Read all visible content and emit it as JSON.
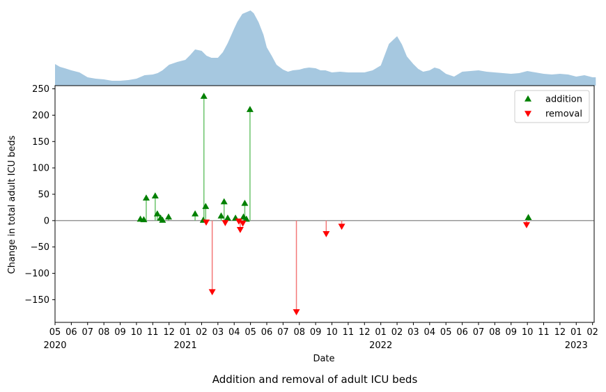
{
  "figure": {
    "title": "Addition and removal of adult ICU beds"
  },
  "chart_data": [
    {
      "type": "area",
      "panel": "top",
      "x_unit": "months since 2020-05-01",
      "x": [
        0,
        0.3,
        0.6,
        1,
        1.5,
        2,
        2.5,
        3,
        3.5,
        4,
        4.5,
        5,
        5.5,
        6,
        6.3,
        6.6,
        7,
        7.5,
        8,
        8.3,
        8.6,
        9,
        9.3,
        9.6,
        10,
        10.3,
        10.6,
        11,
        11.2,
        11.5,
        12,
        12.2,
        12.5,
        12.8,
        13,
        13.3,
        13.6,
        14,
        14.3,
        14.6,
        15,
        15.3,
        15.6,
        16,
        16.3,
        16.6,
        17,
        17.5,
        18,
        18.5,
        19,
        19.5,
        20,
        20.5,
        21,
        21.3,
        21.6,
        22,
        22.3,
        22.6,
        23,
        23.3,
        23.6,
        24,
        24.5,
        25,
        25.5,
        26,
        26.5,
        27,
        27.5,
        28,
        28.5,
        29,
        29.5,
        30,
        30.5,
        31,
        31.5,
        32,
        32.5,
        33,
        33.2
      ],
      "y": [
        31,
        27,
        25,
        22,
        19,
        12,
        10,
        9,
        7,
        7,
        8,
        10,
        15,
        16,
        18,
        22,
        30,
        34,
        37,
        44,
        52,
        50,
        43,
        40,
        40,
        48,
        61,
        82,
        92,
        103,
        108,
        104,
        91,
        73,
        55,
        43,
        30,
        23,
        20,
        22,
        23,
        25,
        26,
        25,
        22,
        22,
        19,
        20,
        19,
        19,
        19,
        22,
        29,
        60,
        71,
        59,
        42,
        31,
        24,
        20,
        22,
        26,
        24,
        17,
        13,
        20,
        21,
        22,
        20,
        19,
        18,
        17,
        18,
        21,
        19,
        17,
        16,
        17,
        16,
        13,
        15,
        12,
        12
      ],
      "ylim": [
        0,
        112
      ],
      "color": "#a6c8e0"
    },
    {
      "type": "scatter",
      "panel": "main",
      "xlabel": "Date",
      "ylabel": "Change in total adult ICU beds",
      "ylim": [
        -193,
        256
      ],
      "xlim": [
        0,
        33.1
      ],
      "y_ticks": [
        250,
        200,
        150,
        100,
        50,
        0,
        -50,
        -100,
        -150
      ],
      "y_tick_labels": [
        "250",
        "200",
        "150",
        "100",
        "50",
        "0",
        "−50",
        "−100",
        "−150"
      ],
      "x_ticks": [
        {
          "m": 0,
          "label": "05",
          "year": "2020"
        },
        {
          "m": 1,
          "label": "06"
        },
        {
          "m": 2,
          "label": "07"
        },
        {
          "m": 3,
          "label": "08"
        },
        {
          "m": 4,
          "label": "09"
        },
        {
          "m": 5,
          "label": "10"
        },
        {
          "m": 6,
          "label": "11"
        },
        {
          "m": 7,
          "label": "12"
        },
        {
          "m": 8,
          "label": "01",
          "year": "2021"
        },
        {
          "m": 9,
          "label": "02"
        },
        {
          "m": 10,
          "label": "03"
        },
        {
          "m": 11,
          "label": "04"
        },
        {
          "m": 12,
          "label": "05"
        },
        {
          "m": 13,
          "label": "06"
        },
        {
          "m": 14,
          "label": "07"
        },
        {
          "m": 15,
          "label": "08"
        },
        {
          "m": 16,
          "label": "09"
        },
        {
          "m": 17,
          "label": "10"
        },
        {
          "m": 18,
          "label": "11"
        },
        {
          "m": 19,
          "label": "12"
        },
        {
          "m": 20,
          "label": "01",
          "year": "2022"
        },
        {
          "m": 21,
          "label": "02"
        },
        {
          "m": 22,
          "label": "03"
        },
        {
          "m": 23,
          "label": "04"
        },
        {
          "m": 24,
          "label": "05"
        },
        {
          "m": 25,
          "label": "06"
        },
        {
          "m": 26,
          "label": "07"
        },
        {
          "m": 27,
          "label": "08"
        },
        {
          "m": 28,
          "label": "09"
        },
        {
          "m": 29,
          "label": "10"
        },
        {
          "m": 30,
          "label": "11"
        },
        {
          "m": 31,
          "label": "12"
        },
        {
          "m": 32,
          "label": "01",
          "year": "2023"
        },
        {
          "m": 33,
          "label": "02"
        }
      ],
      "legend": {
        "placement": "top-right",
        "entries": [
          "addition",
          "removal"
        ]
      },
      "series": [
        {
          "name": "addition",
          "marker": "triangle-up",
          "color": "#008000",
          "stem_color": "#6cc46c",
          "points": [
            {
              "m": 5.24,
              "y": 3
            },
            {
              "m": 5.45,
              "y": 2
            },
            {
              "m": 5.6,
              "y": 43
            },
            {
              "m": 6.15,
              "y": 47
            },
            {
              "m": 6.28,
              "y": 13
            },
            {
              "m": 6.48,
              "y": 5
            },
            {
              "m": 6.6,
              "y": 1
            },
            {
              "m": 6.97,
              "y": 7
            },
            {
              "m": 8.6,
              "y": 13
            },
            {
              "m": 9.1,
              "y": 1
            },
            {
              "m": 9.14,
              "y": 236
            },
            {
              "m": 9.25,
              "y": 27
            },
            {
              "m": 10.2,
              "y": 9
            },
            {
              "m": 10.38,
              "y": 36
            },
            {
              "m": 10.6,
              "y": 5
            },
            {
              "m": 11.08,
              "y": 5
            },
            {
              "m": 11.57,
              "y": 7
            },
            {
              "m": 11.65,
              "y": 33
            },
            {
              "m": 11.75,
              "y": 3
            },
            {
              "m": 11.97,
              "y": 211
            },
            {
              "m": 29.06,
              "y": 6
            }
          ]
        },
        {
          "name": "removal",
          "marker": "triangle-down",
          "color": "#ff0000",
          "stem_color": "#f47878",
          "points": [
            {
              "m": 9.28,
              "y": -3
            },
            {
              "m": 9.65,
              "y": -135
            },
            {
              "m": 10.45,
              "y": -4
            },
            {
              "m": 11.28,
              "y": -1
            },
            {
              "m": 11.37,
              "y": -17
            },
            {
              "m": 11.53,
              "y": -5
            },
            {
              "m": 14.82,
              "y": -173
            },
            {
              "m": 16.65,
              "y": -25
            },
            {
              "m": 17.6,
              "y": -11
            },
            {
              "m": 28.95,
              "y": -8
            }
          ]
        }
      ]
    }
  ]
}
